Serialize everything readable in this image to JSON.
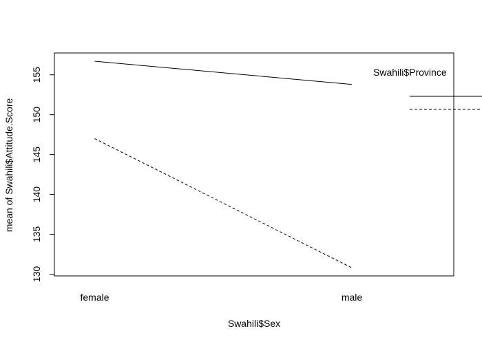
{
  "chart_data": {
    "type": "line",
    "title": "",
    "xlabel": "Swahili$Sex",
    "ylabel": "mean of  Swahili$Attitude.Score",
    "categories": [
      "female",
      "male"
    ],
    "ylim": [
      130,
      156
    ],
    "yticks": [
      130,
      135,
      140,
      145,
      150,
      155
    ],
    "ytick_labels": [
      "130",
      "135",
      "140",
      "145",
      "150",
      "155"
    ],
    "series": [
      {
        "values": [
          156.7,
          153.8
        ],
        "line_style": "solid",
        "color": "#000000"
      },
      {
        "values": [
          147.0,
          130.8
        ],
        "line_style": "dashed",
        "color": "#000000"
      }
    ],
    "legend": {
      "title": "Swahili$Province",
      "placement": "right, outside plot"
    },
    "grid": false
  }
}
